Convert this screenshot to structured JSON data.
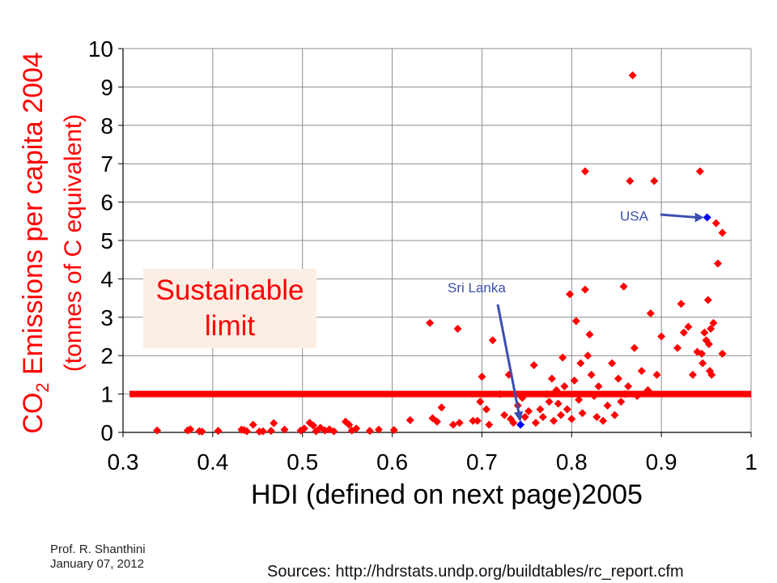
{
  "chart_data": {
    "type": "scatter",
    "xlabel": "HDI (defined on next page)2005",
    "ylabel_main": "CO",
    "ylabel_sub": "2",
    "ylabel_rest": " Emissions per capita 2004",
    "ylabel_line2": "(tonnes of C equivalent)",
    "xlim": [
      0.3,
      1.0
    ],
    "ylim": [
      0,
      10
    ],
    "xticks": [
      "0.3",
      "0.4",
      "0.5",
      "0.6",
      "0.7",
      "0.8",
      "0.9",
      "1"
    ],
    "yticks": [
      "0",
      "1",
      "2",
      "3",
      "4",
      "5",
      "6",
      "7",
      "8",
      "9",
      "10"
    ],
    "grid": true,
    "series": [
      {
        "color": "#ff0000",
        "points": [
          [
            0.338,
            0.05
          ],
          [
            0.372,
            0.05
          ],
          [
            0.375,
            0.08
          ],
          [
            0.385,
            0.03
          ],
          [
            0.388,
            0.02
          ],
          [
            0.406,
            0.04
          ],
          [
            0.432,
            0.07
          ],
          [
            0.435,
            0.06
          ],
          [
            0.438,
            0.03
          ],
          [
            0.445,
            0.2
          ],
          [
            0.452,
            0.02
          ],
          [
            0.456,
            0.03
          ],
          [
            0.465,
            0.04
          ],
          [
            0.468,
            0.24
          ],
          [
            0.48,
            0.07
          ],
          [
            0.498,
            0.05
          ],
          [
            0.502,
            0.1
          ],
          [
            0.508,
            0.25
          ],
          [
            0.512,
            0.18
          ],
          [
            0.515,
            0.03
          ],
          [
            0.52,
            0.12
          ],
          [
            0.525,
            0.05
          ],
          [
            0.53,
            0.08
          ],
          [
            0.535,
            0.03
          ],
          [
            0.548,
            0.28
          ],
          [
            0.552,
            0.2
          ],
          [
            0.555,
            0.05
          ],
          [
            0.56,
            0.1
          ],
          [
            0.575,
            0.04
          ],
          [
            0.585,
            0.07
          ],
          [
            0.602,
            0.06
          ],
          [
            0.62,
            0.32
          ],
          [
            0.642,
            2.85
          ],
          [
            0.645,
            0.37
          ],
          [
            0.65,
            0.28
          ],
          [
            0.655,
            0.65
          ],
          [
            0.668,
            0.2
          ],
          [
            0.673,
            2.7
          ],
          [
            0.675,
            0.25
          ],
          [
            0.69,
            0.3
          ],
          [
            0.695,
            0.3
          ],
          [
            0.698,
            0.8
          ],
          [
            0.7,
            1.45
          ],
          [
            0.705,
            0.6
          ],
          [
            0.708,
            0.2
          ],
          [
            0.712,
            2.4
          ],
          [
            0.72,
            1.0
          ],
          [
            0.725,
            0.45
          ],
          [
            0.73,
            1.5
          ],
          [
            0.732,
            0.35
          ],
          [
            0.735,
            0.25
          ],
          [
            0.74,
            0.7
          ],
          [
            0.745,
            0.9
          ],
          [
            0.748,
            0.4
          ],
          [
            0.752,
            0.55
          ],
          [
            0.758,
            1.75
          ],
          [
            0.76,
            0.25
          ],
          [
            0.765,
            0.6
          ],
          [
            0.768,
            0.4
          ],
          [
            0.772,
            1.0
          ],
          [
            0.775,
            0.8
          ],
          [
            0.778,
            1.4
          ],
          [
            0.78,
            0.3
          ],
          [
            0.783,
            1.1
          ],
          [
            0.785,
            0.75
          ],
          [
            0.788,
            0.45
          ],
          [
            0.79,
            1.95
          ],
          [
            0.792,
            1.2
          ],
          [
            0.795,
            0.6
          ],
          [
            0.798,
            3.6
          ],
          [
            0.8,
            0.35
          ],
          [
            0.803,
            1.35
          ],
          [
            0.805,
            2.9
          ],
          [
            0.808,
            0.85
          ],
          [
            0.81,
            1.8
          ],
          [
            0.812,
            0.5
          ],
          [
            0.815,
            6.8
          ],
          [
            0.815,
            3.72
          ],
          [
            0.818,
            2.0
          ],
          [
            0.82,
            2.55
          ],
          [
            0.822,
            1.5
          ],
          [
            0.825,
            0.95
          ],
          [
            0.828,
            0.4
          ],
          [
            0.83,
            1.2
          ],
          [
            0.835,
            0.3
          ],
          [
            0.84,
            0.7
          ],
          [
            0.845,
            1.8
          ],
          [
            0.848,
            0.45
          ],
          [
            0.852,
            1.4
          ],
          [
            0.855,
            0.8
          ],
          [
            0.858,
            3.8
          ],
          [
            0.86,
            1.0
          ],
          [
            0.863,
            1.2
          ],
          [
            0.865,
            6.55
          ],
          [
            0.868,
            9.3
          ],
          [
            0.87,
            2.2
          ],
          [
            0.873,
            0.95
          ],
          [
            0.878,
            1.6
          ],
          [
            0.885,
            1.1
          ],
          [
            0.888,
            3.1
          ],
          [
            0.892,
            6.55
          ],
          [
            0.895,
            1.5
          ],
          [
            0.9,
            2.5
          ],
          [
            0.918,
            2.2
          ],
          [
            0.922,
            3.35
          ],
          [
            0.925,
            2.6
          ],
          [
            0.93,
            2.75
          ],
          [
            0.935,
            1.5
          ],
          [
            0.94,
            2.1
          ],
          [
            0.943,
            6.8
          ],
          [
            0.945,
            2.05
          ],
          [
            0.948,
            2.6
          ],
          [
            0.95,
            2.4
          ],
          [
            0.952,
            3.45
          ],
          [
            0.954,
            1.6
          ],
          [
            0.956,
            1.5
          ],
          [
            0.958,
            2.85
          ],
          [
            0.961,
            5.45
          ],
          [
            0.963,
            4.4
          ],
          [
            0.968,
            5.2
          ],
          [
            0.968,
            2.05
          ],
          [
            0.955,
            2.7
          ],
          [
            0.946,
            1.8
          ],
          [
            0.953,
            2.3
          ]
        ]
      },
      {
        "color": "#0000ff",
        "points": [
          [
            0.743,
            0.2
          ],
          [
            0.951,
            5.6
          ]
        ]
      }
    ],
    "threshold_line": {
      "y": 1.0,
      "color": "#ff0000"
    },
    "annotations": [
      {
        "label": "USA",
        "x": 0.951,
        "y": 5.6,
        "color": "#3a4fb0"
      },
      {
        "label": "Sri Lanka",
        "x": 0.743,
        "y": 0.2,
        "color": "#3a4fb0"
      }
    ]
  },
  "box": {
    "line1": "Sustainable",
    "line2": "limit"
  },
  "footer": {
    "author": "Prof. R. Shanthini",
    "date": "January 07, 2012"
  },
  "source": "Sources: http://hdrstats.undp.org/buildtables/rc_report.cfm"
}
